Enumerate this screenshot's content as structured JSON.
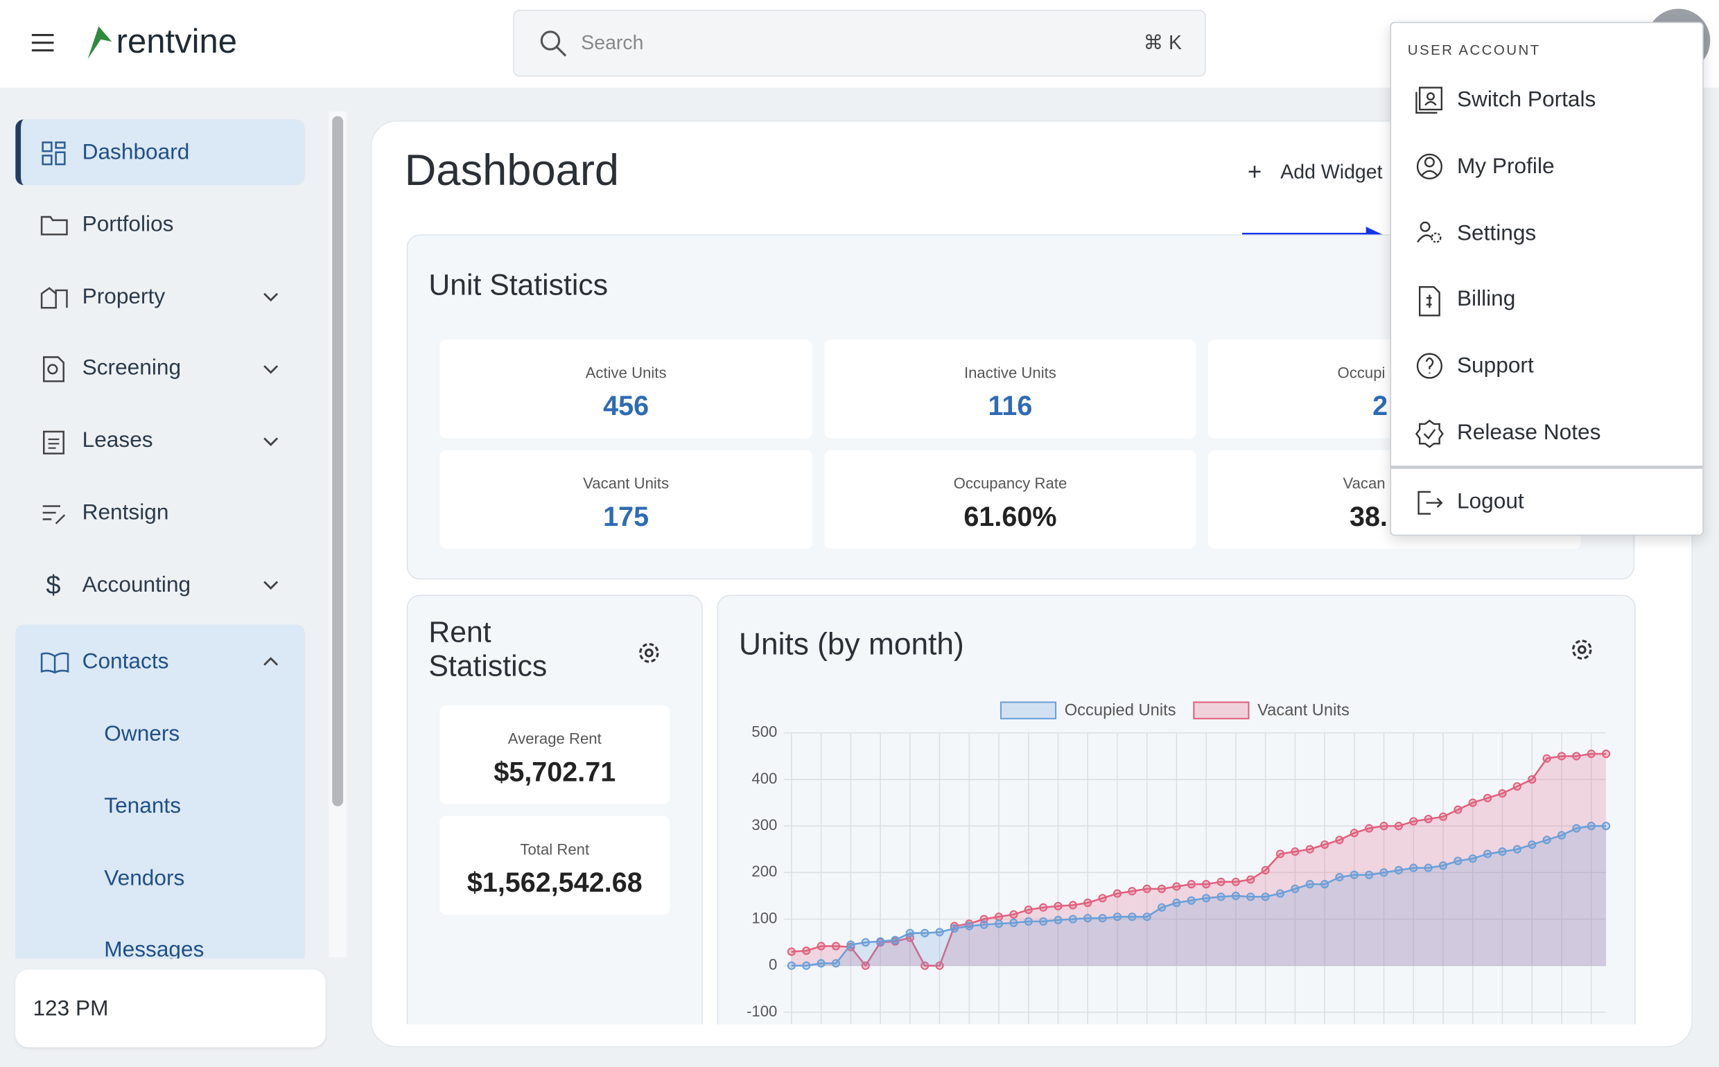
{
  "header": {
    "logo": "rentvine",
    "search_placeholder": "Search",
    "shortcut": "⌘ K"
  },
  "sidebar": {
    "items": [
      "Dashboard",
      "Portfolios",
      "Property",
      "Screening",
      "Leases",
      "Rentsign",
      "Accounting",
      "Contacts"
    ],
    "contacts_submenu": [
      "Owners",
      "Tenants",
      "Vendors",
      "Messages"
    ],
    "footer": "123 PM"
  },
  "main": {
    "title": "Dashboard",
    "add_widget": "Add Widget"
  },
  "unit_statistics": {
    "title": "Unit Statistics",
    "cards": [
      {
        "label": "Active Units",
        "value": "456"
      },
      {
        "label": "Inactive Units",
        "value": "116"
      },
      {
        "label": "Occupi",
        "value": "2"
      },
      {
        "label": "Vacant Units",
        "value": "175"
      },
      {
        "label": "Occupancy Rate",
        "value": "61.60%"
      },
      {
        "label": "Vacan",
        "value": "38."
      }
    ]
  },
  "rent_statistics": {
    "title": "Rent Statistics",
    "cards": [
      {
        "label": "Average Rent",
        "value": "$5,702.71"
      },
      {
        "label": "Total Rent",
        "value": "$1,562,542.68"
      }
    ]
  },
  "chart_data": {
    "type": "line",
    "title": "Units (by month)",
    "ylim": [
      -100,
      500
    ],
    "yticks": [
      -100,
      0,
      100,
      200,
      300,
      400,
      500
    ],
    "grid": true,
    "legend": "top",
    "series": [
      {
        "name": "Occupied Units",
        "color": "#6a9fd8",
        "values": [
          0,
          0,
          5,
          5,
          45,
          50,
          52,
          55,
          70,
          70,
          72,
          80,
          85,
          88,
          90,
          92,
          95,
          95,
          98,
          100,
          102,
          102,
          105,
          105,
          105,
          125,
          135,
          140,
          145,
          148,
          150,
          148,
          148,
          155,
          165,
          175,
          175,
          190,
          195,
          195,
          200,
          205,
          210,
          210,
          215,
          225,
          230,
          240,
          245,
          250,
          260,
          270,
          280,
          295,
          300,
          300
        ]
      },
      {
        "name": "Vacant Units",
        "color": "#e0607e",
        "values": [
          30,
          32,
          42,
          42,
          40,
          0,
          50,
          52,
          60,
          0,
          0,
          85,
          90,
          100,
          105,
          110,
          120,
          125,
          128,
          130,
          135,
          145,
          155,
          160,
          165,
          165,
          170,
          175,
          175,
          180,
          180,
          185,
          205,
          240,
          245,
          250,
          260,
          270,
          285,
          295,
          300,
          300,
          310,
          315,
          320,
          335,
          350,
          360,
          370,
          385,
          400,
          445,
          450,
          450,
          455,
          455
        ]
      }
    ]
  },
  "user_menu": {
    "heading": "USER ACCOUNT",
    "items": [
      "Switch Portals",
      "My Profile",
      "Settings",
      "Billing",
      "Support",
      "Release Notes"
    ],
    "logout": "Logout"
  }
}
